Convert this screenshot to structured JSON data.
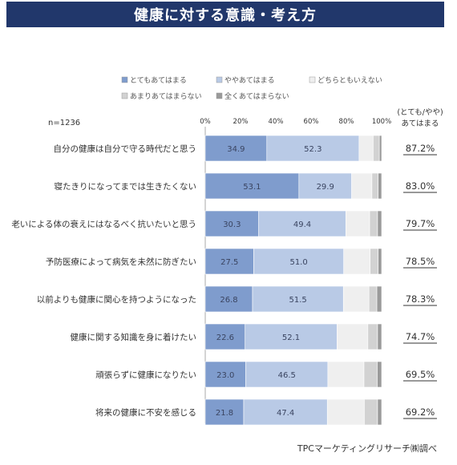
{
  "header": {
    "title": "健康に対する意識・考え方"
  },
  "sample_size": "n=1236",
  "summary_header": [
    "(とても/やや)",
    "あてはまる"
  ],
  "source": "TPCマーケティングリサーチ㈱調べ",
  "chart_data": {
    "type": "bar",
    "orientation": "horizontal",
    "stacked": true,
    "percent_stacked": true,
    "title": "健康に対する意識・考え方",
    "xlim": [
      0,
      100
    ],
    "x_ticks": [
      "0%",
      "20%",
      "40%",
      "60%",
      "80%",
      "100%"
    ],
    "legend_position": "top",
    "categories": [
      "自分の健康は自分で守る時代だと思う",
      "寝たきりになってまでは生きたくない",
      "老いによる体の衰えにはなるべく抗いたいと思う",
      "予防医療によって病気を未然に防ぎたい",
      "以前よりも健康に関心を持つようになった",
      "健康に関する知識を身に着けたい",
      "頑張らずに健康になりたい",
      "将来の健康に不安を感じる"
    ],
    "series": [
      {
        "name": "とてもあてはまる",
        "color": "#7f9ccd",
        "values": [
          34.9,
          53.1,
          30.3,
          27.5,
          26.8,
          22.6,
          23.0,
          21.8
        ]
      },
      {
        "name": "ややあてはまる",
        "color": "#b9cae6",
        "values": [
          52.3,
          29.9,
          49.4,
          51.0,
          51.5,
          52.1,
          46.5,
          47.4
        ]
      },
      {
        "name": "どちらともいえない",
        "color": "#efefef",
        "values": [
          8.0,
          11.5,
          13.5,
          15.0,
          14.5,
          17.5,
          20.5,
          21.0
        ]
      },
      {
        "name": "あまりあてはまらない",
        "color": "#d2d2d2",
        "values": [
          3.5,
          3.5,
          4.5,
          4.5,
          4.5,
          5.5,
          7.5,
          7.5
        ]
      },
      {
        "name": "全くあてはまらない",
        "color": "#9a9a9a",
        "values": [
          1.3,
          2.0,
          2.3,
          2.0,
          2.7,
          2.3,
          2.5,
          2.3
        ]
      }
    ],
    "value_labels_series": [
      0,
      1
    ],
    "summary_values": [
      "87.2%",
      "83.0%",
      "79.7%",
      "78.5%",
      "78.3%",
      "74.7%",
      "69.5%",
      "69.2%"
    ]
  }
}
